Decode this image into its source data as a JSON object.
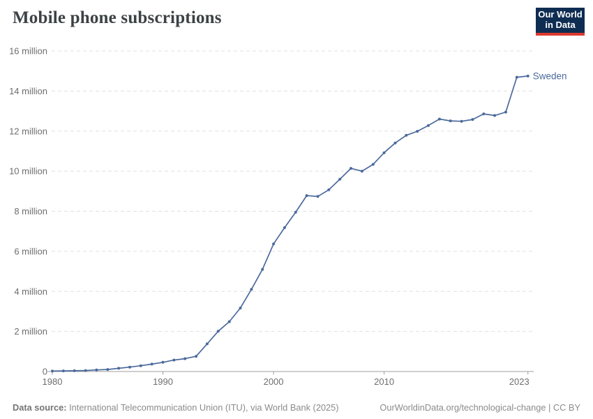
{
  "header": {
    "title": "Mobile phone subscriptions",
    "logo_line1": "Our World",
    "logo_line2": "in Data"
  },
  "chart_data": {
    "type": "line",
    "title": "Mobile phone subscriptions",
    "series_label": "Sweden",
    "unit": "million subscriptions",
    "line_color": "#4c6a9c",
    "grid": "horizontal dashed",
    "legend_position": "end-of-line label",
    "xlim": [
      1979.5,
      2024.5
    ],
    "ylim": [
      0,
      16
    ],
    "x": [
      1980,
      1981,
      1982,
      1983,
      1984,
      1985,
      1986,
      1987,
      1988,
      1989,
      1990,
      1991,
      1992,
      1993,
      1994,
      1995,
      1996,
      1997,
      1998,
      1999,
      2000,
      2001,
      2002,
      2003,
      2004,
      2005,
      2006,
      2007,
      2008,
      2009,
      2010,
      2011,
      2012,
      2013,
      2014,
      2015,
      2016,
      2017,
      2018,
      2019,
      2020,
      2021,
      2022,
      2023
    ],
    "values_millions": [
      0.02,
      0.03,
      0.04,
      0.05,
      0.08,
      0.1,
      0.16,
      0.22,
      0.29,
      0.37,
      0.46,
      0.57,
      0.64,
      0.76,
      1.38,
      2.01,
      2.49,
      3.17,
      4.1,
      5.1,
      6.37,
      7.18,
      7.95,
      8.78,
      8.74,
      9.07,
      9.6,
      10.14,
      10.0,
      10.34,
      10.92,
      11.41,
      11.79,
      11.99,
      12.28,
      12.6,
      12.51,
      12.49,
      12.58,
      12.86,
      12.78,
      12.95,
      14.69,
      14.75
    ],
    "y_ticks": [
      {
        "value": 0,
        "label": "0"
      },
      {
        "value": 2,
        "label": "2 million"
      },
      {
        "value": 4,
        "label": "4 million"
      },
      {
        "value": 6,
        "label": "6 million"
      },
      {
        "value": 8,
        "label": "8 million"
      },
      {
        "value": 10,
        "label": "10 million"
      },
      {
        "value": 12,
        "label": "12 million"
      },
      {
        "value": 14,
        "label": "14 million"
      },
      {
        "value": 16,
        "label": "16 million"
      }
    ],
    "x_ticks": [
      {
        "value": 1980,
        "label": "1980"
      },
      {
        "value": 1990,
        "label": "1990"
      },
      {
        "value": 2000,
        "label": "2000"
      },
      {
        "value": 2010,
        "label": "2010"
      },
      {
        "value": 2023,
        "label": "2023"
      }
    ]
  },
  "footer": {
    "source_label": "Data source:",
    "source_text": " International Telecommunication Union (ITU), via World Bank (2025)",
    "link_text": "OurWorldinData.org/technological-change | CC BY"
  },
  "colors": {
    "line": "#4c6a9c",
    "title": "#3c4245",
    "axis_text": "#6e6e6e",
    "gridline": "#e0e0e0",
    "axis_line": "#9e9e9e",
    "footer_text": "#8b8b8b",
    "logo_bg": "#0f2d52",
    "logo_red": "#dc3a2f"
  }
}
